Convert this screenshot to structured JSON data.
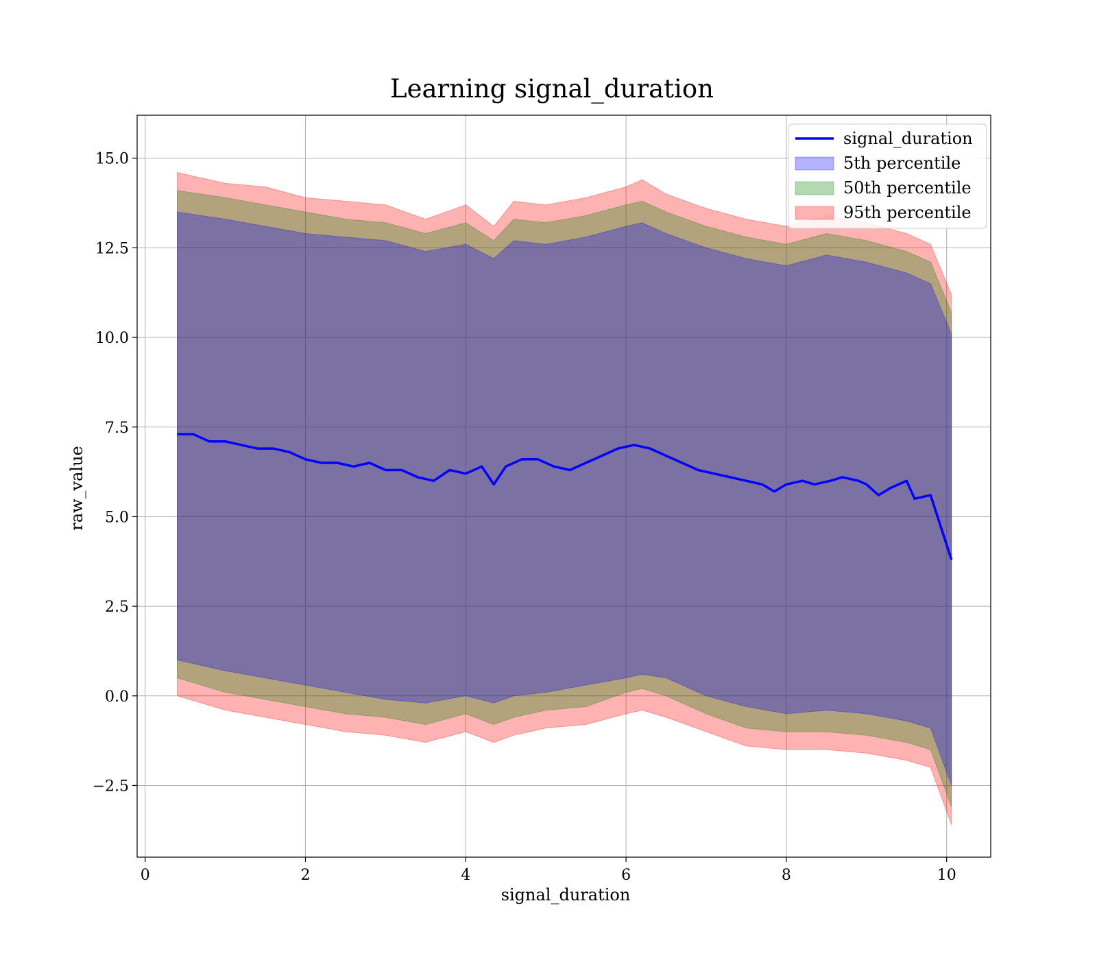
{
  "chart_data": {
    "type": "line",
    "title": "Learning signal_duration",
    "xlabel": "signal_duration",
    "ylabel": "raw_value",
    "xlim": [
      -0.1,
      10.55
    ],
    "ylim": [
      -4.5,
      16.2
    ],
    "xticks": [
      0,
      2,
      4,
      6,
      8,
      10
    ],
    "xtick_labels": [
      "0",
      "2",
      "4",
      "6",
      "8",
      "10"
    ],
    "yticks": [
      -2.5,
      0.0,
      2.5,
      5.0,
      7.5,
      10.0,
      12.5,
      15.0
    ],
    "ytick_labels": [
      "−2.5",
      "0.0",
      "2.5",
      "5.0",
      "7.5",
      "10.0",
      "12.5",
      "15.0"
    ],
    "grid": true,
    "legend_position": "top-right",
    "legend": [
      {
        "label": "signal_duration",
        "kind": "line",
        "color": "#0000ff"
      },
      {
        "label": "5th percentile",
        "kind": "patch",
        "color": "#0000ff"
      },
      {
        "label": "50th percentile",
        "kind": "patch",
        "color": "#008000"
      },
      {
        "label": "95th percentile",
        "kind": "patch",
        "color": "#ff0000"
      }
    ],
    "line": {
      "name": "signal_duration",
      "color": "#0000ff",
      "x": [
        0.4,
        0.6,
        0.8,
        1.0,
        1.2,
        1.4,
        1.6,
        1.8,
        2.0,
        2.2,
        2.4,
        2.6,
        2.8,
        3.0,
        3.2,
        3.4,
        3.6,
        3.8,
        4.0,
        4.2,
        4.35,
        4.5,
        4.7,
        4.9,
        5.1,
        5.3,
        5.5,
        5.7,
        5.9,
        6.1,
        6.3,
        6.5,
        6.7,
        6.9,
        7.1,
        7.3,
        7.5,
        7.7,
        7.85,
        8.0,
        8.2,
        8.35,
        8.55,
        8.7,
        8.9,
        9.0,
        9.15,
        9.3,
        9.5,
        9.6,
        9.8,
        10.06
      ],
      "y": [
        7.3,
        7.3,
        7.1,
        7.1,
        7.0,
        6.9,
        6.9,
        6.8,
        6.6,
        6.5,
        6.5,
        6.4,
        6.5,
        6.3,
        6.3,
        6.1,
        6.0,
        6.3,
        6.2,
        6.4,
        5.9,
        6.4,
        6.6,
        6.6,
        6.4,
        6.3,
        6.5,
        6.7,
        6.9,
        7.0,
        6.9,
        6.7,
        6.5,
        6.3,
        6.2,
        6.1,
        6.0,
        5.9,
        5.7,
        5.9,
        6.0,
        5.9,
        6.0,
        6.1,
        6.0,
        5.9,
        5.6,
        5.8,
        6.0,
        5.5,
        5.6,
        3.8
      ]
    },
    "bands": [
      {
        "name": "95th percentile",
        "color": "#ff0000",
        "opacity": 0.3,
        "x": [
          0.4,
          1.0,
          1.5,
          2.0,
          2.5,
          3.0,
          3.5,
          4.0,
          4.35,
          4.6,
          5.0,
          5.5,
          6.0,
          6.2,
          6.5,
          7.0,
          7.5,
          8.0,
          8.5,
          9.0,
          9.5,
          9.8,
          10.06
        ],
        "upper": [
          14.6,
          14.3,
          14.2,
          13.9,
          13.8,
          13.7,
          13.3,
          13.7,
          13.1,
          13.8,
          13.7,
          13.9,
          14.2,
          14.4,
          14.0,
          13.6,
          13.3,
          13.1,
          13.4,
          13.2,
          12.9,
          12.6,
          11.2
        ],
        "lower": [
          0.0,
          -0.4,
          -0.6,
          -0.8,
          -1.0,
          -1.1,
          -1.3,
          -1.0,
          -1.3,
          -1.1,
          -0.9,
          -0.8,
          -0.5,
          -0.4,
          -0.6,
          -1.0,
          -1.4,
          -1.5,
          -1.5,
          -1.6,
          -1.8,
          -2.0,
          -3.6
        ]
      },
      {
        "name": "50th percentile",
        "color": "#008000",
        "opacity": 0.3,
        "x": [
          0.4,
          1.0,
          1.5,
          2.0,
          2.5,
          3.0,
          3.5,
          4.0,
          4.35,
          4.6,
          5.0,
          5.5,
          6.0,
          6.2,
          6.5,
          7.0,
          7.5,
          8.0,
          8.5,
          9.0,
          9.5,
          9.8,
          10.06
        ],
        "upper": [
          14.1,
          13.9,
          13.7,
          13.5,
          13.3,
          13.2,
          12.9,
          13.2,
          12.7,
          13.3,
          13.2,
          13.4,
          13.7,
          13.8,
          13.5,
          13.1,
          12.8,
          12.6,
          12.9,
          12.7,
          12.4,
          12.1,
          10.7
        ],
        "lower": [
          0.5,
          0.1,
          -0.1,
          -0.3,
          -0.5,
          -0.6,
          -0.8,
          -0.5,
          -0.8,
          -0.6,
          -0.4,
          -0.3,
          0.1,
          0.2,
          0.0,
          -0.5,
          -0.9,
          -1.0,
          -1.0,
          -1.1,
          -1.3,
          -1.5,
          -3.1
        ]
      },
      {
        "name": "5th percentile",
        "color": "#0000ff",
        "opacity": 0.3,
        "x": [
          0.4,
          1.0,
          1.5,
          2.0,
          2.5,
          3.0,
          3.5,
          4.0,
          4.35,
          4.6,
          5.0,
          5.5,
          6.0,
          6.2,
          6.5,
          7.0,
          7.5,
          8.0,
          8.5,
          9.0,
          9.5,
          9.8,
          10.06
        ],
        "upper": [
          13.5,
          13.3,
          13.1,
          12.9,
          12.8,
          12.7,
          12.4,
          12.6,
          12.2,
          12.7,
          12.6,
          12.8,
          13.1,
          13.2,
          12.9,
          12.5,
          12.2,
          12.0,
          12.3,
          12.1,
          11.8,
          11.5,
          10.1
        ],
        "lower": [
          1.0,
          0.7,
          0.5,
          0.3,
          0.1,
          -0.1,
          -0.2,
          0.0,
          -0.2,
          0.0,
          0.1,
          0.3,
          0.5,
          0.6,
          0.5,
          0.0,
          -0.3,
          -0.5,
          -0.4,
          -0.5,
          -0.7,
          -0.9,
          -2.5
        ]
      }
    ]
  }
}
